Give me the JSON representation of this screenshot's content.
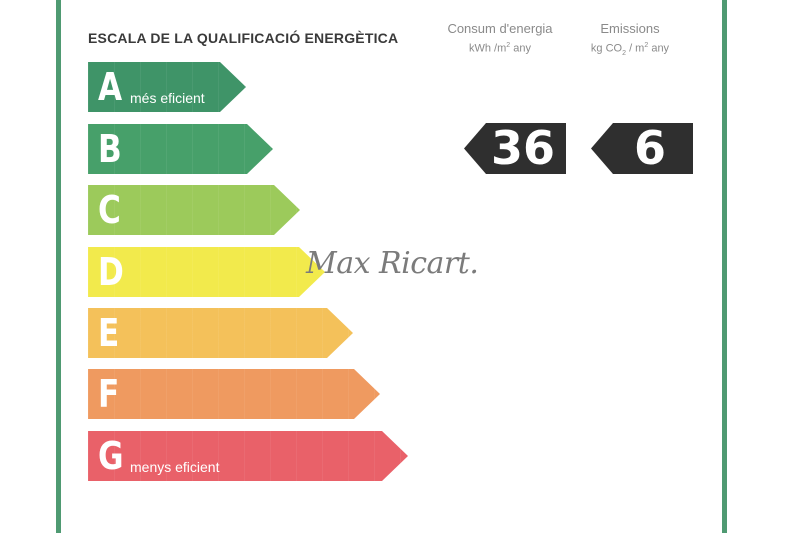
{
  "title": "ESCALA DE LA QUALIFICACIÓ ENERGÈTICA",
  "columns": {
    "consum": {
      "label": "Consum d'energia",
      "unit_prefix": "kWh /m",
      "unit_sup": "2",
      "unit_suffix": " any"
    },
    "emissions": {
      "label": "Emissions",
      "unit_prefix": "kg CO",
      "unit_sub": "2",
      "unit_mid": " / m",
      "unit_sup": "2",
      "unit_suffix": " any"
    }
  },
  "bars": [
    {
      "letter": "A",
      "caption": "més eficient",
      "color": "#3f9468"
    },
    {
      "letter": "B",
      "caption": "",
      "color": "#47a06a"
    },
    {
      "letter": "C",
      "caption": "",
      "color": "#9cca5b"
    },
    {
      "letter": "D",
      "caption": "",
      "color": "#f2ea4c"
    },
    {
      "letter": "E",
      "caption": "",
      "color": "#f4c15a"
    },
    {
      "letter": "F",
      "caption": "",
      "color": "#ef9a60"
    },
    {
      "letter": "G",
      "caption": "menys eficient",
      "color": "#e96169"
    }
  ],
  "values": {
    "consum": "36",
    "emissions": "6"
  },
  "watermark": "Max Ricart."
}
